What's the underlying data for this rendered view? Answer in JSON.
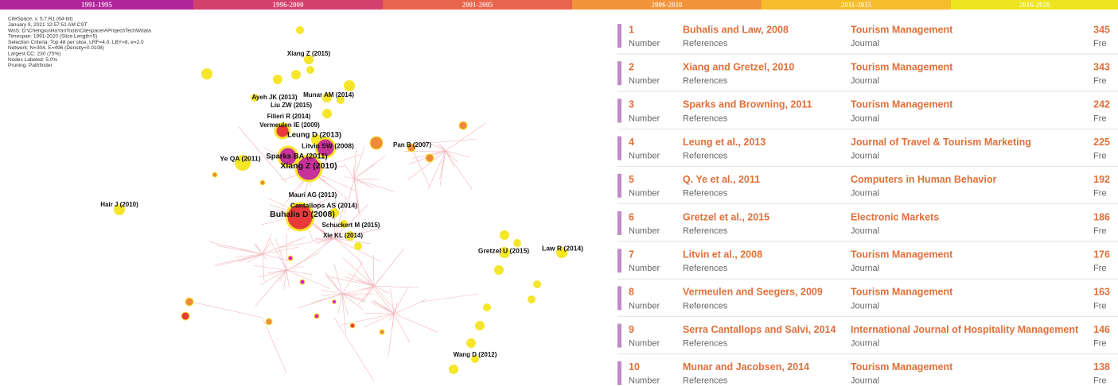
{
  "timeline": [
    "1991-1995",
    "1996-2000",
    "2001-2005",
    "2006-2010",
    "2011-2015",
    "2016-2020"
  ],
  "info": [
    "CiteSpace, v. 5.7.R1 (64-bit)",
    "January 9, 2021 12:57:51 AM CST",
    "WoS: D:\\Chengxu\\HaYanTools\\Citespace\\AProject\\TechWdata",
    "Timespan: 1991-2020 (Slice Length=5)",
    "Selection Criteria: Top 48 per slice, LRF=4.0, LBY=8, e=2.0",
    "Network: N=304, E=496 (Density=0.0108)",
    "Largest CC: 230 (75%)",
    "Nodes Labeled: 5.0%",
    "Pruning: Pathfinder"
  ],
  "network": {
    "labels": [
      "Xiang Z (2015)",
      "Munar AM (2014)",
      "Ayeh JK (2013)",
      "Liu ZW (2015)",
      "Filieri R (2014)",
      "Vermeulen IE (2009)",
      "Leung D (2013)",
      "Litvin SW (2008)",
      "Pan B (2007)",
      "Ye QA (2011)",
      "Sparks BA (2011)",
      "Xiang Z (2010)",
      "Mauri AG (2013)",
      "Cantallops AS (2014)",
      "Buhalis D (2008)",
      "Hair J (2010)",
      "Schuckert M (2015)",
      "Xie KL (2014)",
      "Gretzel U (2015)",
      "Law R (2014)",
      "Wang D (2012)"
    ]
  },
  "list": {
    "rows": [
      {
        "rank": 1,
        "rank_label": "Number",
        "title": "Buhalis and Law, 2008",
        "title_label": "References",
        "journal": "Tourism Management",
        "journal_label": "Journal",
        "count": 345,
        "count_label": "Fre"
      },
      {
        "rank": 2,
        "rank_label": "Number",
        "title": "Xiang and Gretzel, 2010",
        "title_label": "References",
        "journal": "Tourism Management",
        "journal_label": "Journal",
        "count": 343,
        "count_label": "Fre"
      },
      {
        "rank": 3,
        "rank_label": "Number",
        "title": "Sparks and Browning, 2011",
        "title_label": "References",
        "journal": "Tourism Management",
        "journal_label": "Journal",
        "count": 242,
        "count_label": "Fre"
      },
      {
        "rank": 4,
        "rank_label": "Number",
        "title": "Leung et al., 2013",
        "title_label": "References",
        "journal": "Journal of Travel & Tourism Marketing",
        "journal_label": "Journal",
        "count": 225,
        "count_label": "Fre"
      },
      {
        "rank": 5,
        "rank_label": "Number",
        "title": "Q. Ye et al., 2011",
        "title_label": "References",
        "journal": "Computers in Human Behavior",
        "journal_label": "Journal",
        "count": 192,
        "count_label": "Fre"
      },
      {
        "rank": 6,
        "rank_label": "Number",
        "title": "Gretzel et al., 2015",
        "title_label": "References",
        "journal": "Electronic Markets",
        "journal_label": "Journal",
        "count": 186,
        "count_label": "Fre"
      },
      {
        "rank": 7,
        "rank_label": "Number",
        "title": "Litvin et al., 2008",
        "title_label": "References",
        "journal": "Tourism Management",
        "journal_label": "Journal",
        "count": 176,
        "count_label": "Fre"
      },
      {
        "rank": 8,
        "rank_label": "Number",
        "title": "Vermeulen and Seegers, 2009",
        "title_label": "References",
        "journal": "Tourism Management",
        "journal_label": "Journal",
        "count": 163,
        "count_label": "Fre"
      },
      {
        "rank": 9,
        "rank_label": "Number",
        "title": "Serra Cantallops and Salvi, 2014",
        "title_label": "References",
        "journal": "International Journal of Hospitality Management",
        "journal_label": "Journal",
        "count": 146,
        "count_label": "Fre"
      },
      {
        "rank": 10,
        "rank_label": "Number",
        "title": "Munar and Jacobsen, 2014",
        "title_label": "References",
        "journal": "Tourism Management",
        "journal_label": "Journal",
        "count": 138,
        "count_label": "Fre"
      }
    ]
  }
}
